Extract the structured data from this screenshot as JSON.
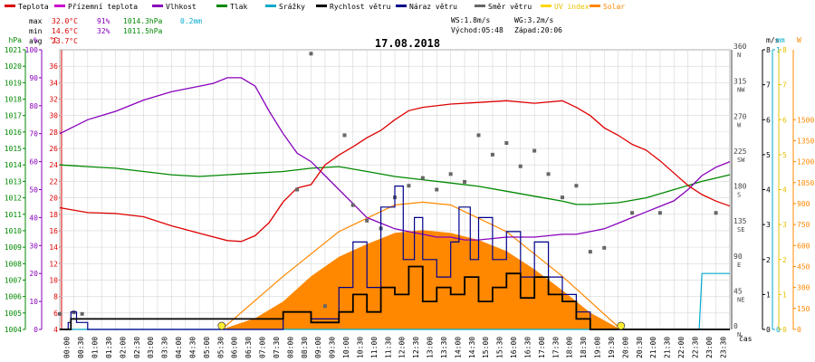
{
  "legend": [
    {
      "label": "Teplota",
      "color": "#dd0000"
    },
    {
      "label": "Přízemní teplota",
      "color": "#cc00cc"
    },
    {
      "label": "Vlhkost",
      "color": "#8800bb"
    },
    {
      "label": "Tlak",
      "color": "#008800"
    },
    {
      "label": "Srážky",
      "color": "#00aacc"
    },
    {
      "label": "Rychlost větru",
      "color": "#000000"
    },
    {
      "label": "Náraz větru",
      "color": "#00008b"
    },
    {
      "label": "Směr větru",
      "color": "#666666"
    },
    {
      "label": "UV index",
      "color": "#ffd700"
    },
    {
      "label": "Solar",
      "color": "#ff8800"
    }
  ],
  "stats": {
    "max_label": "max",
    "max_temp": "32.0°C",
    "max_hum": "91%",
    "max_press": "1014.3hPa",
    "max_rain": "0.2mm",
    "min_label": "min",
    "min_temp": "14.6°C",
    "min_hum": "32%",
    "min_press": "1011.5hPa",
    "avg_label": "avg",
    "avg_temp": "23.7°C"
  },
  "wind_stats": {
    "ws": "WS:1.8m/s",
    "wg": "WG:3.2m/s",
    "sunrise": "Východ:05:48",
    "sunset": "Západ:20:06"
  },
  "date": "17.08.2018",
  "x_axis_label": "čas",
  "colors": {
    "temp": "#dd0000",
    "hum": "#8800bb",
    "press": "#008800",
    "rain": "#00aacc",
    "wind": "#000000",
    "gust": "#00008b",
    "dir": "#666666",
    "uv": "#ffd700",
    "solar": "#ff8800",
    "grid": "#d6d6d6"
  },
  "chart_data": {
    "type": "line",
    "title": "17.08.2018",
    "xlabel": "čas",
    "x_range_hours": [
      0,
      24
    ],
    "x_ticks": [
      "00:00",
      "00:30",
      "01:00",
      "01:30",
      "02:00",
      "02:30",
      "03:00",
      "03:30",
      "04:00",
      "04:30",
      "05:00",
      "05:30",
      "06:00",
      "06:30",
      "07:00",
      "07:30",
      "08:00",
      "08:30",
      "09:00",
      "09:30",
      "10:00",
      "10:30",
      "11:00",
      "11:30",
      "12:00",
      "12:30",
      "13:00",
      "13:30",
      "14:00",
      "14:30",
      "15:00",
      "15:30",
      "16:00",
      "16:30",
      "17:00",
      "17:30",
      "18:00",
      "18:30",
      "19:00",
      "19:30",
      "20:00",
      "20:30",
      "21:00",
      "21:30",
      "22:00",
      "22:30",
      "23:00",
      "23:30"
    ],
    "axes": {
      "pressure": {
        "unit": "hPa",
        "range": [
          1004,
          1021
        ],
        "ticks": [
          1004,
          1005,
          1006,
          1007,
          1008,
          1009,
          1010,
          1011,
          1012,
          1013,
          1014,
          1015,
          1016,
          1017,
          1018,
          1019,
          1020,
          1021
        ]
      },
      "humidity": {
        "unit": "%",
        "range": [
          0,
          100
        ],
        "ticks": [
          0,
          10,
          20,
          30,
          40,
          50,
          60,
          70,
          80,
          90,
          100
        ]
      },
      "temperature": {
        "unit": "°C",
        "range": [
          4,
          38
        ],
        "ticks": [
          4,
          6,
          8,
          10,
          12,
          14,
          16,
          18,
          20,
          22,
          24,
          26,
          28,
          30,
          32,
          34,
          36
        ]
      },
      "wind": {
        "unit": "m/s",
        "range": [
          0,
          8
        ],
        "ticks": [
          0,
          1,
          2,
          3,
          4,
          5,
          6,
          7,
          8
        ]
      },
      "direction": {
        "range": [
          0,
          360
        ],
        "ticks": [
          0,
          45,
          90,
          135,
          180,
          225,
          270,
          315,
          360
        ],
        "labels": [
          "N",
          "NE",
          "E",
          "SE",
          "S",
          "SW",
          "W",
          "NW",
          "N"
        ]
      },
      "rain": {
        "unit": "mm",
        "range": [
          0,
          1
        ],
        "ticks": [
          0,
          1
        ]
      },
      "uv": {
        "range": [
          0,
          8
        ],
        "ticks": [
          0,
          1,
          2,
          3,
          4,
          5,
          6,
          7,
          8
        ]
      },
      "solar": {
        "unit": "W",
        "range": [
          0,
          2000
        ],
        "ticks": [
          0,
          150,
          300,
          450,
          600,
          750,
          900,
          1050,
          1200,
          1350,
          1500
        ]
      }
    },
    "series": [
      {
        "name": "Teplota",
        "axis": "temperature",
        "points": [
          [
            0,
            18.8
          ],
          [
            1,
            18.2
          ],
          [
            2,
            18.1
          ],
          [
            3,
            17.7
          ],
          [
            4,
            16.6
          ],
          [
            5,
            15.7
          ],
          [
            6,
            14.8
          ],
          [
            6.5,
            14.7
          ],
          [
            7,
            15.4
          ],
          [
            7.5,
            17
          ],
          [
            8,
            19.5
          ],
          [
            8.5,
            21.2
          ],
          [
            9,
            21.6
          ],
          [
            9.5,
            24
          ],
          [
            10,
            25.2
          ],
          [
            10.5,
            26.2
          ],
          [
            11,
            27.3
          ],
          [
            11.5,
            28.2
          ],
          [
            12,
            29.5
          ],
          [
            12.5,
            30.6
          ],
          [
            13,
            31
          ],
          [
            14,
            31.4
          ],
          [
            15,
            31.6
          ],
          [
            16,
            31.8
          ],
          [
            17,
            31.5
          ],
          [
            18,
            31.8
          ],
          [
            18.5,
            31
          ],
          [
            19,
            30
          ],
          [
            19.5,
            28.5
          ],
          [
            20,
            27.6
          ],
          [
            20.5,
            26.5
          ],
          [
            21,
            25.8
          ],
          [
            21.5,
            24.5
          ],
          [
            22,
            23
          ],
          [
            22.5,
            21.5
          ],
          [
            23,
            20.4
          ],
          [
            23.5,
            19.6
          ],
          [
            24,
            19.0
          ]
        ]
      },
      {
        "name": "Vlhkost",
        "axis": "humidity",
        "points": [
          [
            0,
            70
          ],
          [
            1,
            75
          ],
          [
            2,
            78
          ],
          [
            3,
            82
          ],
          [
            4,
            85
          ],
          [
            5,
            87
          ],
          [
            5.5,
            88
          ],
          [
            6,
            90
          ],
          [
            6.5,
            90
          ],
          [
            7,
            87
          ],
          [
            7.5,
            78
          ],
          [
            8,
            70
          ],
          [
            8.5,
            63
          ],
          [
            9,
            60
          ],
          [
            9.5,
            55
          ],
          [
            10,
            50
          ],
          [
            10.5,
            45
          ],
          [
            11,
            40
          ],
          [
            11.5,
            38
          ],
          [
            12,
            36
          ],
          [
            12.5,
            35
          ],
          [
            13,
            34
          ],
          [
            13.5,
            33
          ],
          [
            14,
            33
          ],
          [
            14.5,
            32
          ],
          [
            15,
            32
          ],
          [
            16,
            33
          ],
          [
            17,
            33
          ],
          [
            18,
            34
          ],
          [
            18.5,
            34
          ],
          [
            19,
            35
          ],
          [
            19.5,
            36
          ],
          [
            20,
            38
          ],
          [
            20.5,
            40
          ],
          [
            21,
            42
          ],
          [
            21.5,
            44
          ],
          [
            22,
            46
          ],
          [
            22.5,
            50
          ],
          [
            23,
            55
          ],
          [
            23.5,
            58
          ],
          [
            24,
            60
          ]
        ]
      },
      {
        "name": "Tlak",
        "axis": "pressure",
        "points": [
          [
            0,
            1014.0
          ],
          [
            1,
            1013.9
          ],
          [
            2,
            1013.8
          ],
          [
            3,
            1013.6
          ],
          [
            4,
            1013.4
          ],
          [
            5,
            1013.3
          ],
          [
            6,
            1013.4
          ],
          [
            7,
            1013.5
          ],
          [
            8,
            1013.6
          ],
          [
            9,
            1013.8
          ],
          [
            10,
            1013.9
          ],
          [
            11,
            1013.6
          ],
          [
            12,
            1013.3
          ],
          [
            13,
            1013.1
          ],
          [
            14,
            1012.9
          ],
          [
            15,
            1012.7
          ],
          [
            16,
            1012.4
          ],
          [
            17,
            1012.1
          ],
          [
            18,
            1011.8
          ],
          [
            18.5,
            1011.6
          ],
          [
            19,
            1011.6
          ],
          [
            20,
            1011.7
          ],
          [
            21,
            1012.0
          ],
          [
            22,
            1012.5
          ],
          [
            23,
            1013.0
          ],
          [
            24,
            1013.4
          ]
        ]
      },
      {
        "name": "Srážky",
        "axis": "rain",
        "points": [
          [
            0,
            0
          ],
          [
            22.9,
            0
          ],
          [
            23.0,
            0.2
          ],
          [
            24,
            0.2
          ]
        ]
      },
      {
        "name": "Rychlost větru",
        "axis": "wind",
        "points": [
          [
            0,
            0
          ],
          [
            0.3,
            0
          ],
          [
            0.4,
            0.3
          ],
          [
            1,
            0.3
          ],
          [
            3,
            0.3
          ],
          [
            5,
            0.3
          ],
          [
            7,
            0.3
          ],
          [
            8,
            0.5
          ],
          [
            9,
            0.2
          ],
          [
            10,
            0.5
          ],
          [
            10.5,
            1.0
          ],
          [
            11,
            0.5
          ],
          [
            11.5,
            1.2
          ],
          [
            12,
            1.0
          ],
          [
            12.5,
            1.8
          ],
          [
            13,
            0.8
          ],
          [
            13.5,
            1.2
          ],
          [
            14,
            1.0
          ],
          [
            14.5,
            1.5
          ],
          [
            15,
            0.8
          ],
          [
            15.5,
            1.2
          ],
          [
            16,
            1.6
          ],
          [
            16.5,
            0.9
          ],
          [
            17,
            1.5
          ],
          [
            17.5,
            1.0
          ],
          [
            18,
            0.8
          ],
          [
            18.5,
            0.3
          ],
          [
            19,
            0
          ],
          [
            24,
            0
          ]
        ]
      },
      {
        "name": "Náraz větru",
        "axis": "wind",
        "points": [
          [
            0,
            0
          ],
          [
            0.3,
            0.2
          ],
          [
            0.4,
            0.5
          ],
          [
            0.6,
            0.2
          ],
          [
            1,
            0
          ],
          [
            7.5,
            0
          ],
          [
            8,
            0.5
          ],
          [
            9,
            0.3
          ],
          [
            10,
            1.2
          ],
          [
            10.5,
            2.5
          ],
          [
            11,
            1.2
          ],
          [
            11.5,
            3.5
          ],
          [
            12,
            4.1
          ],
          [
            12.3,
            2.0
          ],
          [
            12.7,
            3.2
          ],
          [
            13,
            2.0
          ],
          [
            13.5,
            1.5
          ],
          [
            14,
            2.5
          ],
          [
            14.3,
            3.5
          ],
          [
            14.7,
            2.0
          ],
          [
            15,
            3.2
          ],
          [
            15.5,
            2.0
          ],
          [
            16,
            2.8
          ],
          [
            16.5,
            1.5
          ],
          [
            17,
            2.5
          ],
          [
            17.5,
            1.5
          ],
          [
            18,
            1.0
          ],
          [
            18.5,
            0.5
          ],
          [
            19,
            0
          ],
          [
            24,
            0
          ]
        ]
      },
      {
        "name": "Směr větru",
        "axis": "direction",
        "points": [
          [
            0,
            20
          ],
          [
            0.5,
            22
          ],
          [
            0.8,
            20
          ],
          [
            8.5,
            180
          ],
          [
            9.0,
            355
          ],
          [
            9.5,
            30
          ],
          [
            10.2,
            250
          ],
          [
            10.5,
            160
          ],
          [
            11.0,
            140
          ],
          [
            11.5,
            130
          ],
          [
            12.0,
            170
          ],
          [
            12.5,
            185
          ],
          [
            13.0,
            195
          ],
          [
            13.5,
            180
          ],
          [
            14.0,
            200
          ],
          [
            14.5,
            190
          ],
          [
            15.0,
            250
          ],
          [
            15.5,
            225
          ],
          [
            16.0,
            240
          ],
          [
            16.5,
            210
          ],
          [
            17.0,
            230
          ],
          [
            17.5,
            200
          ],
          [
            18.0,
            170
          ],
          [
            18.5,
            185
          ],
          [
            19.0,
            100
          ],
          [
            19.5,
            105
          ],
          [
            20.5,
            150
          ],
          [
            21.5,
            150
          ],
          [
            23.5,
            150
          ]
        ]
      },
      {
        "name": "UV index",
        "axis": "uv",
        "points": [
          [
            5.8,
            0.2
          ],
          [
            20.1,
            0.2
          ]
        ]
      },
      {
        "name": "Solar",
        "axis": "solar",
        "points": [
          [
            5.8,
            0
          ],
          [
            7,
            80
          ],
          [
            8,
            200
          ],
          [
            9,
            380
          ],
          [
            10,
            520
          ],
          [
            11,
            610
          ],
          [
            12,
            690
          ],
          [
            13,
            710
          ],
          [
            14,
            690
          ],
          [
            15,
            640
          ],
          [
            16,
            560
          ],
          [
            17,
            430
          ],
          [
            18,
            280
          ],
          [
            19,
            120
          ],
          [
            20,
            10
          ],
          [
            20.1,
            0
          ]
        ]
      },
      {
        "name": "Solar max",
        "axis": "solar",
        "points": [
          [
            5.8,
            0
          ],
          [
            8,
            380
          ],
          [
            10,
            700
          ],
          [
            12,
            890
          ],
          [
            13,
            910
          ],
          [
            14,
            890
          ],
          [
            16,
            700
          ],
          [
            18,
            380
          ],
          [
            20.1,
            0
          ]
        ]
      }
    ]
  }
}
